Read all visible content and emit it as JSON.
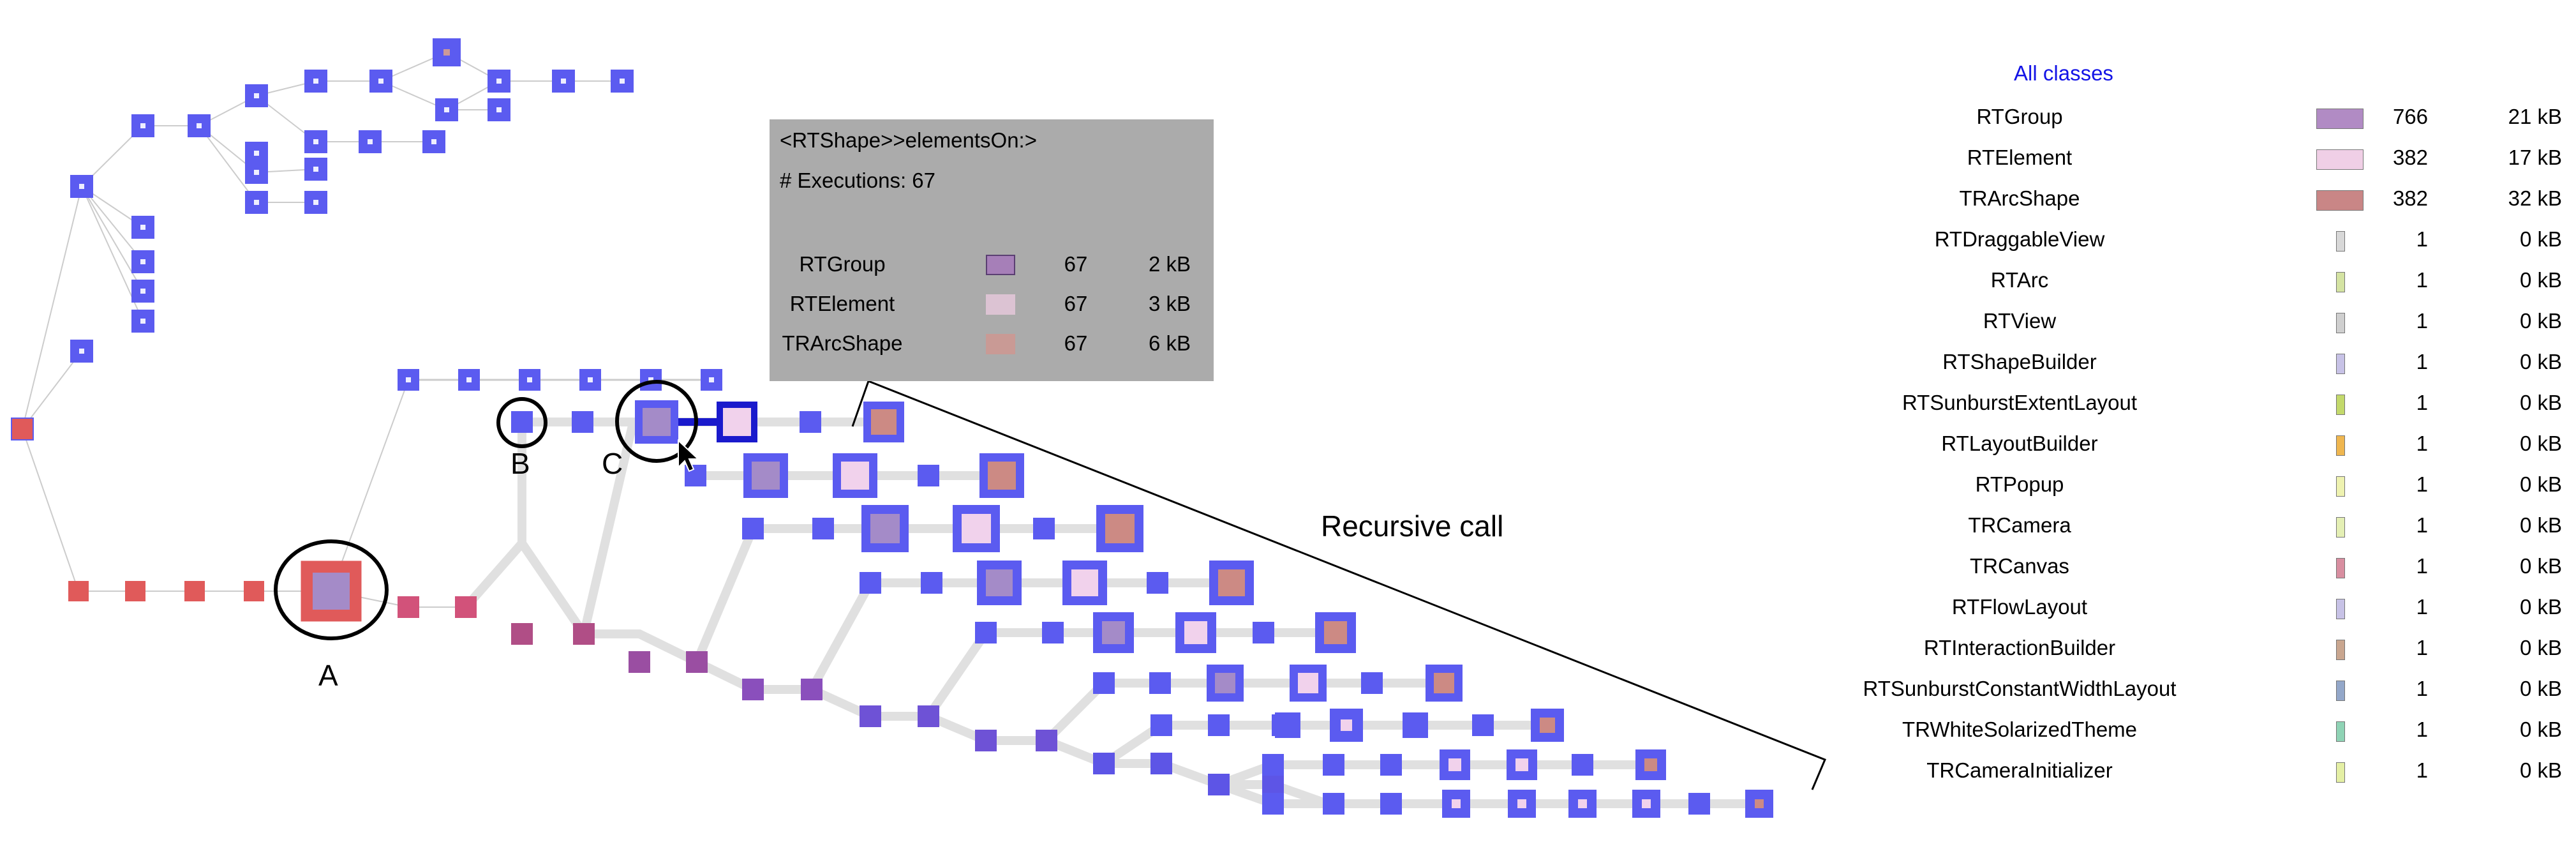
{
  "legend": {
    "title": "All classes",
    "rows": [
      {
        "name": "RTGroup",
        "count": "766",
        "size": "21 kB",
        "color": "#b18bc4",
        "swatch": "large"
      },
      {
        "name": "RTElement",
        "count": "382",
        "size": "17 kB",
        "color": "#f0cfe6",
        "swatch": "large"
      },
      {
        "name": "TRArcShape",
        "count": "382",
        "size": "32 kB",
        "color": "#c98686",
        "swatch": "large"
      },
      {
        "name": "RTDraggableView",
        "count": "1",
        "size": "0 kB",
        "color": "#d8d8d8",
        "swatch": "small"
      },
      {
        "name": "RTArc",
        "count": "1",
        "size": "0 kB",
        "color": "#d4e3a2",
        "swatch": "small"
      },
      {
        "name": "RTView",
        "count": "1",
        "size": "0 kB",
        "color": "#cfcfcf",
        "swatch": "small"
      },
      {
        "name": "RTShapeBuilder",
        "count": "1",
        "size": "0 kB",
        "color": "#c7c2e6",
        "swatch": "small"
      },
      {
        "name": "RTSunburstExtentLayout",
        "count": "1",
        "size": "0 kB",
        "color": "#c3d96b",
        "swatch": "small"
      },
      {
        "name": "RTLayoutBuilder",
        "count": "1",
        "size": "0 kB",
        "color": "#efb64f",
        "swatch": "small"
      },
      {
        "name": "RTPopup",
        "count": "1",
        "size": "0 kB",
        "color": "#eef2b0",
        "swatch": "small"
      },
      {
        "name": "TRCamera",
        "count": "1",
        "size": "0 kB",
        "color": "#e4efb4",
        "swatch": "small"
      },
      {
        "name": "TRCanvas",
        "count": "1",
        "size": "0 kB",
        "color": "#d88ea0",
        "swatch": "small"
      },
      {
        "name": "RTFlowLayout",
        "count": "1",
        "size": "0 kB",
        "color": "#c7c2e6",
        "swatch": "small"
      },
      {
        "name": "RTInteractionBuilder",
        "count": "1",
        "size": "0 kB",
        "color": "#c9a68f",
        "swatch": "small"
      },
      {
        "name": "RTSunburstConstantWidthLayout",
        "count": "1",
        "size": "0 kB",
        "color": "#93a7c9",
        "swatch": "small"
      },
      {
        "name": "TRWhiteSolarizedTheme",
        "count": "1",
        "size": "0 kB",
        "color": "#8fd3b5",
        "swatch": "small"
      },
      {
        "name": "TRCameraInitializer",
        "count": "1",
        "size": "0 kB",
        "color": "#e4efa4",
        "swatch": "small"
      }
    ]
  },
  "popup": {
    "title": "<RTShape>>elementsOn:>",
    "executions": "# Executions: 67",
    "background": "#ababab",
    "rows": [
      {
        "name": "RTGroup",
        "count": "67",
        "size": "2 kB",
        "color": "#a67fb8"
      },
      {
        "name": "RTElement",
        "count": "67",
        "size": "3 kB",
        "color": "#dcc3d3"
      },
      {
        "name": "TRArcShape",
        "count": "67",
        "size": "6 kB",
        "color": "#c99a95"
      }
    ]
  },
  "annotations": {
    "recursive_call": "Recursive call",
    "label_a": "A",
    "label_b": "B",
    "label_c": "C"
  },
  "colors": {
    "node_blue": "#5b5bf0",
    "node_red": "#e05a5a",
    "node_mauve": "#b04e86",
    "node_purple": "#8a4fbc",
    "node_violet": "#6e52d6",
    "edge_gray": "#e0e0e0",
    "tree_line": "#cccccc",
    "highlight": "#1a1acc",
    "legend_title": "#1414e6"
  }
}
